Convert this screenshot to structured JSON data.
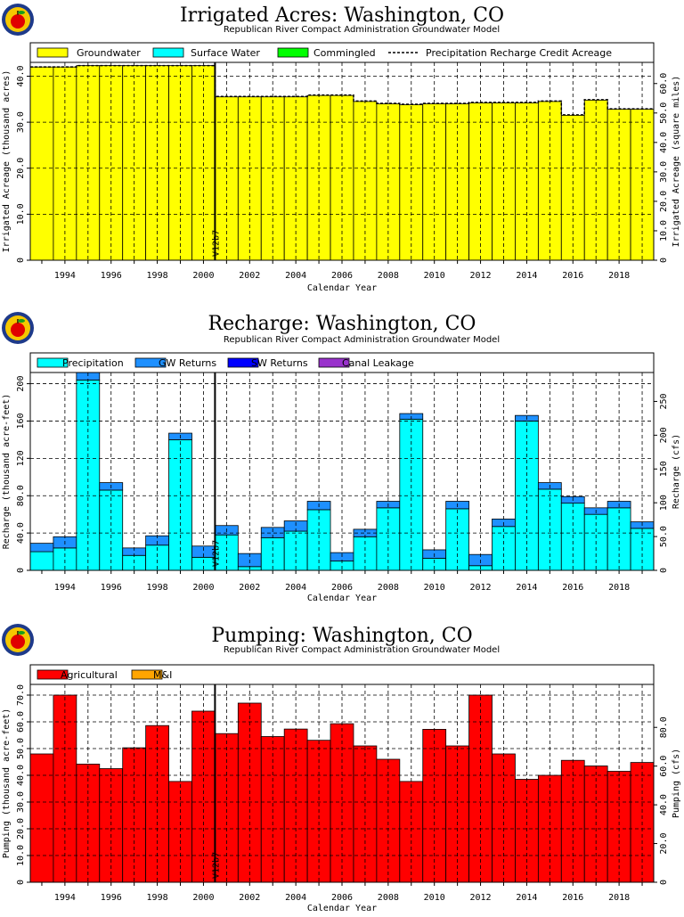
{
  "chart_data": [
    {
      "type": "bar",
      "title": "Irrigated Acres: Washington, CO",
      "subtitle": "Republican River Compact Administration Groundwater Model",
      "xlabel": "Calendar Year",
      "ylabel": "Irrigated Acreage (thousand acres)",
      "y2label": "Irrigated Acreage (square miles)",
      "xlim": [
        1992.5,
        2019.5
      ],
      "ylim": [
        0,
        43
      ],
      "y2lim": [
        0,
        67.19
      ],
      "xticks": [
        1994,
        1996,
        1998,
        2000,
        2002,
        2004,
        2006,
        2008,
        2010,
        2012,
        2014,
        2016,
        2018
      ],
      "yticks": [
        0,
        10,
        20,
        30,
        40
      ],
      "ytick_labels": [
        "0",
        "10.0",
        "20.0",
        "30.0",
        "40.0"
      ],
      "y2ticks": [
        0,
        10,
        20,
        30,
        40,
        50,
        60
      ],
      "y2tick_labels": [
        "0",
        "10.0",
        "20.0",
        "30.0",
        "40.0",
        "50.0",
        "60.0"
      ],
      "grid": true,
      "legend_position": "top",
      "marker_line": {
        "x": 2000.5,
        "label": "V12b7"
      },
      "x": [
        1993,
        1994,
        1995,
        1996,
        1997,
        1998,
        1999,
        2000,
        2001,
        2002,
        2003,
        2004,
        2005,
        2006,
        2007,
        2008,
        2009,
        2010,
        2011,
        2012,
        2013,
        2014,
        2015,
        2016,
        2017,
        2018,
        2019
      ],
      "series": [
        {
          "name": "Groundwater",
          "color": "#ffff00",
          "values": [
            42.0,
            42.0,
            42.3,
            42.3,
            42.3,
            42.3,
            42.3,
            42.3,
            35.5,
            35.5,
            35.5,
            35.5,
            35.8,
            35.8,
            34.5,
            34.0,
            33.8,
            34.0,
            34.0,
            34.2,
            34.2,
            34.2,
            34.5,
            31.5,
            34.8,
            32.8,
            32.8
          ]
        },
        {
          "name": "Surface Water",
          "color": "#00ffff",
          "values": [
            0,
            0,
            0,
            0,
            0,
            0,
            0,
            0,
            0,
            0,
            0,
            0,
            0,
            0,
            0,
            0,
            0,
            0,
            0,
            0,
            0,
            0,
            0,
            0,
            0,
            0,
            0
          ]
        },
        {
          "name": "Commingled",
          "color": "#00ff00",
          "values": [
            0,
            0,
            0,
            0,
            0,
            0,
            0,
            0,
            0,
            0,
            0,
            0,
            0,
            0,
            0,
            0,
            0,
            0,
            0,
            0,
            0,
            0,
            0,
            0,
            0,
            0,
            0
          ]
        },
        {
          "name": "Precipitation Recharge Credit Acreage",
          "kind": "line",
          "values": [
            42.0,
            42.0,
            42.3,
            42.3,
            42.3,
            42.3,
            42.3,
            42.3,
            35.6,
            35.6,
            35.6,
            35.6,
            35.9,
            35.9,
            34.6,
            34.1,
            33.9,
            34.1,
            34.1,
            34.3,
            34.3,
            34.3,
            34.6,
            31.6,
            34.9,
            32.9,
            32.9
          ]
        }
      ]
    },
    {
      "type": "bar",
      "title": "Recharge: Washington, CO",
      "subtitle": "Republican River Compact Administration Groundwater Model",
      "xlabel": "Calendar Year",
      "ylabel": "Recharge (thousand acre-feet)",
      "y2label": "Recharge (cfs)",
      "xlim": [
        1992.5,
        2019.5
      ],
      "ylim": [
        0,
        212
      ],
      "y2lim": [
        0,
        292.8
      ],
      "xticks": [
        1994,
        1996,
        1998,
        2000,
        2002,
        2004,
        2006,
        2008,
        2010,
        2012,
        2014,
        2016,
        2018
      ],
      "yticks": [
        0,
        40,
        80,
        120,
        160,
        200
      ],
      "ytick_labels": [
        "0",
        "40.0",
        "80.0",
        "120",
        "160",
        "200"
      ],
      "y2ticks": [
        0,
        50,
        100,
        150,
        200,
        250
      ],
      "y2tick_labels": [
        "0",
        "50.0",
        "100",
        "150",
        "200",
        "250"
      ],
      "grid": true,
      "legend_position": "top",
      "marker_line": {
        "x": 2000.5,
        "label": "V12b7"
      },
      "x": [
        1993,
        1994,
        1995,
        1996,
        1997,
        1998,
        1999,
        2000,
        2001,
        2002,
        2003,
        2004,
        2005,
        2006,
        2007,
        2008,
        2009,
        2010,
        2011,
        2012,
        2013,
        2014,
        2015,
        2016,
        2017,
        2018,
        2019
      ],
      "series": [
        {
          "name": "Precipitation",
          "color": "#00ffff",
          "values": [
            20,
            24,
            204,
            86,
            16,
            27,
            140,
            14,
            38,
            4,
            35,
            42,
            65,
            10,
            36,
            67,
            162,
            13,
            66,
            5,
            47,
            160,
            87,
            72,
            60,
            67,
            45
          ]
        },
        {
          "name": "GW Returns",
          "color": "#1e90ff",
          "values": [
            9,
            12,
            8,
            8,
            8,
            10,
            7,
            12,
            10,
            14,
            11,
            11,
            9,
            9,
            8,
            7,
            6,
            9,
            8,
            12,
            8,
            6,
            7,
            7,
            7,
            7,
            7
          ]
        },
        {
          "name": "SW Returns",
          "color": "#0000ff",
          "values": [
            0,
            0,
            0,
            0,
            0,
            0,
            0,
            0,
            0,
            0,
            0,
            0,
            0,
            0,
            0,
            0,
            0,
            0,
            0,
            0,
            0,
            0,
            0,
            0,
            0,
            0,
            0
          ]
        },
        {
          "name": "Canal Leakage",
          "color": "#9932cc",
          "values": [
            0,
            0,
            0,
            0,
            0,
            0,
            0,
            0,
            0,
            0,
            0,
            0,
            0,
            0,
            0,
            0,
            0,
            0,
            0,
            0,
            0,
            0,
            0,
            0,
            0,
            0,
            0
          ]
        }
      ]
    },
    {
      "type": "bar",
      "title": "Pumping: Washington, CO",
      "subtitle": "Republican River Compact Administration Groundwater Model",
      "xlabel": "Calendar Year",
      "ylabel": "Pumping (thousand acre-feet)",
      "y2label": "Pumping (cfs)",
      "xlim": [
        1992.5,
        2019.5
      ],
      "ylim": [
        0,
        74
      ],
      "y2lim": [
        0,
        102.2
      ],
      "xticks": [
        1994,
        1996,
        1998,
        2000,
        2002,
        2004,
        2006,
        2008,
        2010,
        2012,
        2014,
        2016,
        2018
      ],
      "yticks": [
        0,
        10,
        20,
        30,
        40,
        50,
        60,
        70
      ],
      "ytick_labels": [
        "0",
        "10.0",
        "20.0",
        "30.0",
        "40.0",
        "50.0",
        "60.0",
        "70.0"
      ],
      "y2ticks": [
        0,
        20,
        40,
        60,
        80
      ],
      "y2tick_labels": [
        "0",
        "20.0",
        "40.0",
        "60.0",
        "80.0"
      ],
      "grid": true,
      "legend_position": "top",
      "marker_line": {
        "x": 2000.5,
        "label": "V12b7"
      },
      "x": [
        1993,
        1994,
        1995,
        1996,
        1997,
        1998,
        1999,
        2000,
        2001,
        2002,
        2003,
        2004,
        2005,
        2006,
        2007,
        2008,
        2009,
        2010,
        2011,
        2012,
        2013,
        2014,
        2015,
        2016,
        2017,
        2018,
        2019
      ],
      "series": [
        {
          "name": "Agricultural",
          "color": "#ff0000",
          "values": [
            48.0,
            70.0,
            44.2,
            42.5,
            50.3,
            58.6,
            37.7,
            64.0,
            55.6,
            67.0,
            54.5,
            57.3,
            53.1,
            59.3,
            51.0,
            46.0,
            37.7,
            57.2,
            51.0,
            70.0,
            48.0,
            38.5,
            40.0,
            45.6,
            43.5,
            41.5,
            44.8
          ]
        },
        {
          "name": "M&I",
          "color": "#ffa500",
          "values": [
            0,
            0,
            0,
            0,
            0,
            0,
            0,
            0,
            0,
            0,
            0,
            0,
            0,
            0,
            0,
            0,
            0,
            0,
            0,
            0,
            0,
            0,
            0,
            0,
            0,
            0,
            0
          ]
        }
      ]
    }
  ]
}
